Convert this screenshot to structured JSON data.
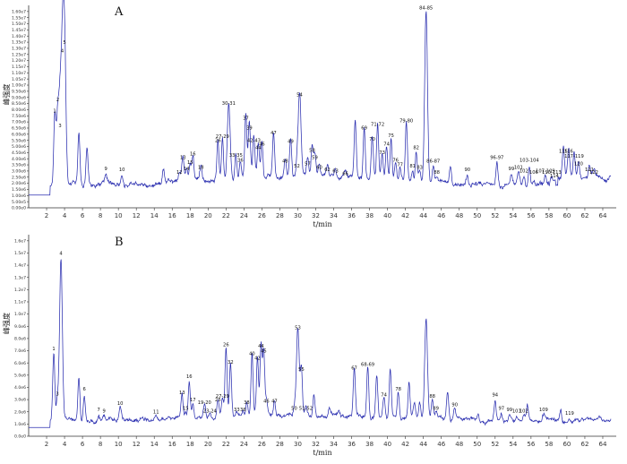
{
  "chart_data": [
    {
      "type": "line",
      "panel_label": "A",
      "xlabel": "t/min",
      "ylabel": "峰强度",
      "xlim": [
        0,
        65.5
      ],
      "ylim": [
        0,
        16500000.0
      ],
      "xticks": [
        2,
        4,
        6,
        8,
        10,
        12,
        14,
        16,
        18,
        20,
        22,
        24,
        26,
        28,
        30,
        32,
        34,
        36,
        38,
        40,
        42,
        44,
        46,
        48,
        50,
        52,
        54,
        56,
        58,
        60,
        62,
        64
      ],
      "yticks": [
        {
          "v": 0,
          "label": "0.00e0"
        },
        {
          "v": 500000.0,
          "label": "5.00e5"
        },
        {
          "v": 1000000.0,
          "label": "1.00e6"
        },
        {
          "v": 1500000.0,
          "label": "1.50e6"
        },
        {
          "v": 2000000.0,
          "label": "2.00e6"
        },
        {
          "v": 2500000.0,
          "label": "2.50e6"
        },
        {
          "v": 3000000.0,
          "label": "3.00e6"
        },
        {
          "v": 3500000.0,
          "label": "3.50e6"
        },
        {
          "v": 4000000.0,
          "label": "4.00e6"
        },
        {
          "v": 4500000.0,
          "label": "4.50e6"
        },
        {
          "v": 5000000.0,
          "label": "5.00e6"
        },
        {
          "v": 5500000.0,
          "label": "5.50e6"
        },
        {
          "v": 6000000.0,
          "label": "6.00e6"
        },
        {
          "v": 6500000.0,
          "label": "6.50e6"
        },
        {
          "v": 7000000.0,
          "label": "7.00e6"
        },
        {
          "v": 7500000.0,
          "label": "7.50e6"
        },
        {
          "v": 8000000.0,
          "label": "8.00e6"
        },
        {
          "v": 8500000.0,
          "label": "8.50e6"
        },
        {
          "v": 9000000.0,
          "label": "9.00e6"
        },
        {
          "v": 9500000.0,
          "label": "9.50e6"
        },
        {
          "v": 10000000.0,
          "label": "1.00e7"
        },
        {
          "v": 10500000.0,
          "label": "1.05e7"
        },
        {
          "v": 11000000.0,
          "label": "1.10e7"
        },
        {
          "v": 11500000.0,
          "label": "1.15e7"
        },
        {
          "v": 12000000.0,
          "label": "1.20e7"
        },
        {
          "v": 12500000.0,
          "label": "1.25e7"
        },
        {
          "v": 13000000.0,
          "label": "1.30e7"
        },
        {
          "v": 13500000.0,
          "label": "1.35e7"
        },
        {
          "v": 14000000.0,
          "label": "1.40e7"
        },
        {
          "v": 14500000.0,
          "label": "1.45e7"
        },
        {
          "v": 15000000.0,
          "label": "1.50e7"
        },
        {
          "v": 15500000.0,
          "label": "1.55e7"
        },
        {
          "v": 16000000.0,
          "label": "1.60e7"
        }
      ],
      "baseline": 1900000.0,
      "noise": 220000.0,
      "peaks": [
        {
          "t": 2.9,
          "h": 5600000.0,
          "label": "1"
        },
        {
          "t": 3.25,
          "h": 6500000.0,
          "label": "2"
        },
        {
          "t": 3.5,
          "h": 4400000.0,
          "label": "3"
        },
        {
          "t": 3.75,
          "h": 10500000.0,
          "label": "4"
        },
        {
          "t": 4.0,
          "h": 11200000.0,
          "label": "5"
        },
        {
          "t": 5.6,
          "h": 4000000.0,
          "label": ""
        },
        {
          "t": 6.5,
          "h": 3100000.0,
          "label": ""
        },
        {
          "t": 8.6,
          "h": 900000.0,
          "label": "9"
        },
        {
          "t": 10.4,
          "h": 800000.0,
          "label": "10"
        },
        {
          "t": 15.0,
          "h": 1200000.0,
          "label": ""
        },
        {
          "t": 16.8,
          "h": 600000.0,
          "label": "12"
        },
        {
          "t": 17.2,
          "h": 1800000.0,
          "label": "13"
        },
        {
          "t": 17.6,
          "h": 900000.0,
          "label": "14"
        },
        {
          "t": 18.0,
          "h": 1400000.0,
          "label": "15"
        },
        {
          "t": 18.3,
          "h": 2100000.0,
          "label": "16"
        },
        {
          "t": 19.2,
          "h": 1000000.0,
          "label": "18"
        },
        {
          "t": 21.1,
          "h": 3200000.0,
          "label": "26"
        },
        {
          "t": 21.6,
          "h": 3500000.0,
          "label": "27-29"
        },
        {
          "t": 22.3,
          "h": 6200000.0,
          "label": "30-31"
        },
        {
          "t": 23.1,
          "h": 2000000.0,
          "label": "33-35"
        },
        {
          "t": 23.6,
          "h": 1600000.0,
          "label": "36"
        },
        {
          "t": 24.2,
          "h": 5000000.0,
          "label": "37"
        },
        {
          "t": 24.6,
          "h": 4200000.0,
          "label": "39"
        },
        {
          "t": 25.1,
          "h": 3200000.0,
          "label": "42-43"
        },
        {
          "t": 25.6,
          "h": 2600000.0,
          "label": "44"
        },
        {
          "t": 26.0,
          "h": 2900000.0,
          "label": "46"
        },
        {
          "t": 27.3,
          "h": 3800000.0,
          "label": "47"
        },
        {
          "t": 28.6,
          "h": 1500000.0,
          "label": "48"
        },
        {
          "t": 29.2,
          "h": 3100000.0,
          "label": "49"
        },
        {
          "t": 29.9,
          "h": 1100000.0,
          "label": "52"
        },
        {
          "t": 30.2,
          "h": 6900000.0,
          "label": "54"
        },
        {
          "t": 31.1,
          "h": 1300000.0,
          "label": "57"
        },
        {
          "t": 31.6,
          "h": 2400000.0,
          "label": "58"
        },
        {
          "t": 31.9,
          "h": 1800000.0,
          "label": "59"
        },
        {
          "t": 32.4,
          "h": 1000000.0,
          "label": "60"
        },
        {
          "t": 33.3,
          "h": 800000.0,
          "label": "62"
        },
        {
          "t": 34.2,
          "h": 700000.0,
          "label": "63"
        },
        {
          "t": 35.3,
          "h": 500000.0,
          "label": "66"
        },
        {
          "t": 36.4,
          "h": 4500000.0,
          "label": ""
        },
        {
          "t": 37.4,
          "h": 4200000.0,
          "label": "69"
        },
        {
          "t": 38.3,
          "h": 3300000.0,
          "label": "70"
        },
        {
          "t": 38.9,
          "h": 4500000.0,
          "label": "71-72"
        },
        {
          "t": 39.4,
          "h": 2200000.0,
          "label": "73"
        },
        {
          "t": 39.9,
          "h": 2900000.0,
          "label": "74"
        },
        {
          "t": 40.4,
          "h": 3600000.0,
          "label": "75"
        },
        {
          "t": 40.9,
          "h": 1600000.0,
          "label": "76"
        },
        {
          "t": 41.4,
          "h": 1200000.0,
          "label": "77"
        },
        {
          "t": 42.1,
          "h": 4800000.0,
          "label": "79-80"
        },
        {
          "t": 42.8,
          "h": 1100000.0,
          "label": "81"
        },
        {
          "t": 43.2,
          "h": 2600000.0,
          "label": "82"
        },
        {
          "t": 43.6,
          "h": 1000000.0,
          "label": "83"
        },
        {
          "t": 44.3,
          "h": 14000000.0,
          "label": "84-85"
        },
        {
          "t": 45.1,
          "h": 1500000.0,
          "label": "86-87"
        },
        {
          "t": 45.5,
          "h": 600000.0,
          "label": "88"
        },
        {
          "t": 47.0,
          "h": 1500000.0,
          "label": ""
        },
        {
          "t": 48.9,
          "h": 800000.0,
          "label": "90"
        },
        {
          "t": 52.2,
          "h": 1800000.0,
          "label": "96-97"
        },
        {
          "t": 53.8,
          "h": 900000.0,
          "label": "99"
        },
        {
          "t": 54.6,
          "h": 1000000.0,
          "label": "101"
        },
        {
          "t": 55.2,
          "h": 700000.0,
          "label": "102"
        },
        {
          "t": 55.8,
          "h": 1600000.0,
          "label": "103-104"
        },
        {
          "t": 56.3,
          "h": 600000.0,
          "label": "106"
        },
        {
          "t": 57.6,
          "h": 700000.0,
          "label": "107-109"
        },
        {
          "t": 58.3,
          "h": 600000.0,
          "label": "110-113"
        },
        {
          "t": 58.6,
          "h": 300000.0,
          "label": "114"
        },
        {
          "t": 59.6,
          "h": 2300000.0,
          "label": "115"
        },
        {
          "t": 60.2,
          "h": 2300000.0,
          "label": "116"
        },
        {
          "t": 60.8,
          "h": 1900000.0,
          "label": "117-119"
        },
        {
          "t": 61.3,
          "h": 1300000.0,
          "label": "120"
        },
        {
          "t": 62.5,
          "h": 800000.0,
          "label": "121"
        },
        {
          "t": 63.0,
          "h": 600000.0,
          "label": "122"
        }
      ]
    },
    {
      "type": "line",
      "panel_label": "B",
      "xlabel": "t/min",
      "ylabel": "峰强度",
      "xlim": [
        0,
        65.5
      ],
      "ylim": [
        0,
        16500000.0
      ],
      "xticks": [
        2,
        4,
        6,
        8,
        10,
        12,
        14,
        16,
        18,
        20,
        22,
        24,
        26,
        28,
        30,
        32,
        34,
        36,
        38,
        40,
        42,
        44,
        46,
        48,
        50,
        52,
        54,
        56,
        58,
        60,
        62,
        64
      ],
      "yticks": [
        {
          "v": 0,
          "label": "0.0e0"
        },
        {
          "v": 1000000.0,
          "label": "1.0e6"
        },
        {
          "v": 2000000.0,
          "label": "2.0e6"
        },
        {
          "v": 3000000.0,
          "label": "3.0e6"
        },
        {
          "v": 4000000.0,
          "label": "4.0e6"
        },
        {
          "v": 5000000.0,
          "label": "5.0e6"
        },
        {
          "v": 6000000.0,
          "label": "6.0e6"
        },
        {
          "v": 7000000.0,
          "label": "7.0e6"
        },
        {
          "v": 8000000.0,
          "label": "8.0e6"
        },
        {
          "v": 9000000.0,
          "label": "9.0e6"
        },
        {
          "v": 10000000.0,
          "label": "1.0e7"
        },
        {
          "v": 11000000.0,
          "label": "1.1e7"
        },
        {
          "v": 12000000.0,
          "label": "1.2e7"
        },
        {
          "v": 13000000.0,
          "label": "1.3e7"
        },
        {
          "v": 14000000.0,
          "label": "1.4e7"
        },
        {
          "v": 15000000.0,
          "label": "1.5e7"
        },
        {
          "v": 16000000.0,
          "label": "1.6e7"
        }
      ],
      "baseline": 1300000.0,
      "noise": 180000.0,
      "peaks": [
        {
          "t": 2.8,
          "h": 5500000.0,
          "label": "1"
        },
        {
          "t": 3.2,
          "h": 1800000.0,
          "label": "3"
        },
        {
          "t": 3.6,
          "h": 13300000.0,
          "label": "4"
        },
        {
          "t": 5.6,
          "h": 3500000.0,
          "label": ""
        },
        {
          "t": 6.2,
          "h": 2200000.0,
          "label": "6"
        },
        {
          "t": 7.8,
          "h": 500000.0,
          "label": "7"
        },
        {
          "t": 8.4,
          "h": 400000.0,
          "label": "9"
        },
        {
          "t": 10.2,
          "h": 1000000.0,
          "label": "10"
        },
        {
          "t": 14.2,
          "h": 300000.0,
          "label": "11"
        },
        {
          "t": 17.1,
          "h": 1900000.0,
          "label": "13"
        },
        {
          "t": 17.5,
          "h": 600000.0,
          "label": "15"
        },
        {
          "t": 17.9,
          "h": 3200000.0,
          "label": "16"
        },
        {
          "t": 18.3,
          "h": 1300000.0,
          "label": "17"
        },
        {
          "t": 19.6,
          "h": 1100000.0,
          "label": "19-20"
        },
        {
          "t": 20.2,
          "h": 400000.0,
          "label": "23-24"
        },
        {
          "t": 21.1,
          "h": 1300000.0,
          "label": "25"
        },
        {
          "t": 21.6,
          "h": 1600000.0,
          "label": "27-29"
        },
        {
          "t": 22.0,
          "h": 5800000.0,
          "label": "26"
        },
        {
          "t": 22.5,
          "h": 4400000.0,
          "label": "32"
        },
        {
          "t": 23.2,
          "h": 500000.0,
          "label": "33"
        },
        {
          "t": 23.9,
          "h": 500000.0,
          "label": "36"
        },
        {
          "t": 24.3,
          "h": 1100000.0,
          "label": "38"
        },
        {
          "t": 24.9,
          "h": 5100000.0,
          "label": "40"
        },
        {
          "t": 25.5,
          "h": 4700000.0,
          "label": "42"
        },
        {
          "t": 25.9,
          "h": 5700000.0,
          "label": "44"
        },
        {
          "t": 26.2,
          "h": 5300000.0,
          "label": "45"
        },
        {
          "t": 26.5,
          "h": 1200000.0,
          "label": "46"
        },
        {
          "t": 27.4,
          "h": 1200000.0,
          "label": "47"
        },
        {
          "t": 29.6,
          "h": 600000.0,
          "label": "50"
        },
        {
          "t": 30.0,
          "h": 7200000.0,
          "label": "53"
        },
        {
          "t": 30.4,
          "h": 3800000.0,
          "label": "55"
        },
        {
          "t": 30.9,
          "h": 600000.0,
          "label": "51-52"
        },
        {
          "t": 31.8,
          "h": 1800000.0,
          "label": ""
        },
        {
          "t": 33.5,
          "h": 600000.0,
          "label": ""
        },
        {
          "t": 34.6,
          "h": 500000.0,
          "label": ""
        },
        {
          "t": 36.3,
          "h": 3900000.0,
          "label": "67"
        },
        {
          "t": 37.8,
          "h": 4200000.0,
          "label": "68-69"
        },
        {
          "t": 38.8,
          "h": 3400000.0,
          "label": ""
        },
        {
          "t": 39.6,
          "h": 1700000.0,
          "label": "74"
        },
        {
          "t": 40.3,
          "h": 3900000.0,
          "label": ""
        },
        {
          "t": 41.2,
          "h": 2200000.0,
          "label": "78"
        },
        {
          "t": 42.4,
          "h": 2900000.0,
          "label": ""
        },
        {
          "t": 43.0,
          "h": 1200000.0,
          "label": ""
        },
        {
          "t": 43.6,
          "h": 1300000.0,
          "label": ""
        },
        {
          "t": 44.3,
          "h": 8100000.0,
          "label": ""
        },
        {
          "t": 45.0,
          "h": 1600000.0,
          "label": "88"
        },
        {
          "t": 45.4,
          "h": 600000.0,
          "label": "89"
        },
        {
          "t": 46.7,
          "h": 2200000.0,
          "label": ""
        },
        {
          "t": 47.5,
          "h": 900000.0,
          "label": "90"
        },
        {
          "t": 50.1,
          "h": 500000.0,
          "label": ""
        },
        {
          "t": 52.0,
          "h": 1700000.0,
          "label": "94"
        },
        {
          "t": 52.7,
          "h": 600000.0,
          "label": "97"
        },
        {
          "t": 53.6,
          "h": 500000.0,
          "label": "99"
        },
        {
          "t": 54.4,
          "h": 400000.0,
          "label": "101"
        },
        {
          "t": 55.2,
          "h": 400000.0,
          "label": "102"
        },
        {
          "t": 55.6,
          "h": 1200000.0,
          "label": ""
        },
        {
          "t": 57.4,
          "h": 500000.0,
          "label": "109"
        },
        {
          "t": 59.3,
          "h": 900000.0,
          "label": ""
        },
        {
          "t": 60.3,
          "h": 200000.0,
          "label": "119"
        }
      ]
    }
  ]
}
